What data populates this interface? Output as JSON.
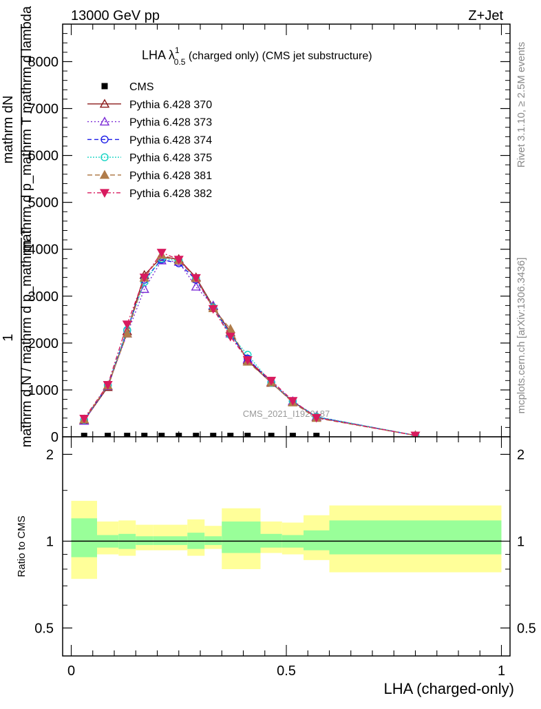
{
  "header": {
    "left": "13000 GeV pp",
    "right": "Z+Jet"
  },
  "side_labels": {
    "rivet": "Rivet 3.1.10, ≥ 2.5M events",
    "mcplots": "mcplots.cern.ch [arXiv:1306.3436]"
  },
  "chart_data": [
    {
      "type": "line",
      "title": "LHA λ",
      "title_sup": "1",
      "title_sub": "0.5",
      "title_rest": " (charged only) (CMS jet substructure)",
      "ylabel_top": "mathrm dN",
      "ylabel_top2": "mathrm d p_mathrm T mathrm d lambda",
      "ylabel_one": "1",
      "ylabel_bottom": "mathrm d N / mathrm d p_mathrm T",
      "watermark": "CMS_2021_I1920187",
      "xlim": [
        -0.02,
        1.02
      ],
      "ylim": [
        0,
        8800
      ],
      "yticks": [
        0,
        1000,
        2000,
        3000,
        4000,
        5000,
        6000,
        7000,
        8000
      ],
      "ytick_labels": [
        "0",
        "1000",
        "2000",
        "3000",
        "4000",
        "5000",
        "6000",
        "7000",
        "8000"
      ],
      "legend_position": "top-left",
      "x": [
        0.03,
        0.085,
        0.13,
        0.17,
        0.21,
        0.25,
        0.29,
        0.33,
        0.37,
        0.41,
        0.465,
        0.515,
        0.57,
        0.8
      ],
      "series": [
        {
          "name": "CMS",
          "color": "#000000",
          "marker": "square",
          "dash": "",
          "values": [
            20,
            20,
            20,
            20,
            20,
            20,
            20,
            20,
            20,
            20,
            20,
            20,
            20,
            null
          ]
        },
        {
          "name": "Pythia 6.428 370",
          "color": "#8b1a1a",
          "marker": "triangle-open",
          "dash": "",
          "values": [
            350,
            1060,
            2250,
            3450,
            3830,
            3790,
            3400,
            2780,
            2230,
            1630,
            1150,
            750,
            420,
            30
          ]
        },
        {
          "name": "Pythia 6.428 373",
          "color": "#7b2bd6",
          "marker": "triangle-open",
          "dash": "2,3",
          "values": [
            340,
            1080,
            2200,
            3150,
            3760,
            3730,
            3200,
            2800,
            2200,
            1660,
            1170,
            760,
            430,
            30
          ]
        },
        {
          "name": "Pythia 6.428 374",
          "color": "#1a1ae6",
          "marker": "circle-open",
          "dash": "6,4",
          "values": [
            360,
            1100,
            2270,
            3350,
            3780,
            3700,
            3350,
            2750,
            2180,
            1670,
            1160,
            760,
            420,
            30
          ]
        },
        {
          "name": "Pythia 6.428 375",
          "color": "#17d4c4",
          "marker": "circle-open",
          "dash": "2,2",
          "values": [
            360,
            1100,
            2280,
            3300,
            3800,
            3760,
            3380,
            2760,
            2170,
            1750,
            1150,
            760,
            430,
            30
          ]
        },
        {
          "name": "Pythia 6.428 381",
          "color": "#b07c4a",
          "marker": "triangle-filled",
          "dash": "7,4",
          "values": [
            370,
            1090,
            2200,
            3390,
            3880,
            3760,
            3380,
            2740,
            2300,
            1600,
            1160,
            730,
            400,
            30
          ]
        },
        {
          "name": "Pythia 6.428 382",
          "color": "#d81b5e",
          "marker": "triangle-down-filled",
          "dash": "6,3,2,3",
          "values": [
            390,
            1110,
            2400,
            3400,
            3930,
            3780,
            3390,
            2730,
            2140,
            1640,
            1200,
            770,
            410,
            30
          ]
        }
      ]
    },
    {
      "type": "area",
      "ylabel": "Ratio to CMS",
      "xlabel": "LHA (charged-only)",
      "xlim": [
        -0.02,
        1.02
      ],
      "ylim": [
        0.4,
        2.3
      ],
      "yticks": [
        0.5,
        1,
        2
      ],
      "ytick_labels": [
        "0.5",
        "1",
        "2"
      ],
      "xticks": [
        0,
        0.5,
        1
      ],
      "xtick_labels": [
        "0",
        "0.5",
        "1"
      ],
      "reference_line": 1,
      "band_colors": {
        "outer": "#ffff99",
        "inner": "#99ff99",
        "line": "#000000"
      },
      "bins": [
        {
          "x0": 0.0,
          "x1": 0.06,
          "outer": [
            0.74,
            1.38
          ],
          "inner": [
            0.88,
            1.2
          ]
        },
        {
          "x0": 0.06,
          "x1": 0.11,
          "outer": [
            0.9,
            1.17
          ],
          "inner": [
            0.95,
            1.05
          ]
        },
        {
          "x0": 0.11,
          "x1": 0.15,
          "outer": [
            0.89,
            1.18
          ],
          "inner": [
            0.94,
            1.06
          ]
        },
        {
          "x0": 0.15,
          "x1": 0.19,
          "outer": [
            0.93,
            1.14
          ],
          "inner": [
            0.97,
            1.04
          ]
        },
        {
          "x0": 0.19,
          "x1": 0.27,
          "outer": [
            0.93,
            1.14
          ],
          "inner": [
            0.97,
            1.04
          ]
        },
        {
          "x0": 0.27,
          "x1": 0.31,
          "outer": [
            0.89,
            1.19
          ],
          "inner": [
            0.94,
            1.07
          ]
        },
        {
          "x0": 0.31,
          "x1": 0.35,
          "outer": [
            0.94,
            1.13
          ],
          "inner": [
            0.97,
            1.04
          ]
        },
        {
          "x0": 0.35,
          "x1": 0.44,
          "outer": [
            0.8,
            1.3
          ],
          "inner": [
            0.91,
            1.17
          ]
        },
        {
          "x0": 0.44,
          "x1": 0.49,
          "outer": [
            0.91,
            1.17
          ],
          "inner": [
            0.95,
            1.06
          ]
        },
        {
          "x0": 0.49,
          "x1": 0.54,
          "outer": [
            0.9,
            1.16
          ],
          "inner": [
            0.95,
            1.05
          ]
        },
        {
          "x0": 0.54,
          "x1": 0.6,
          "outer": [
            0.86,
            1.23
          ],
          "inner": [
            0.93,
            1.09
          ]
        },
        {
          "x0": 0.6,
          "x1": 1.0,
          "outer": [
            0.78,
            1.33
          ],
          "inner": [
            0.9,
            1.18
          ]
        }
      ]
    }
  ]
}
